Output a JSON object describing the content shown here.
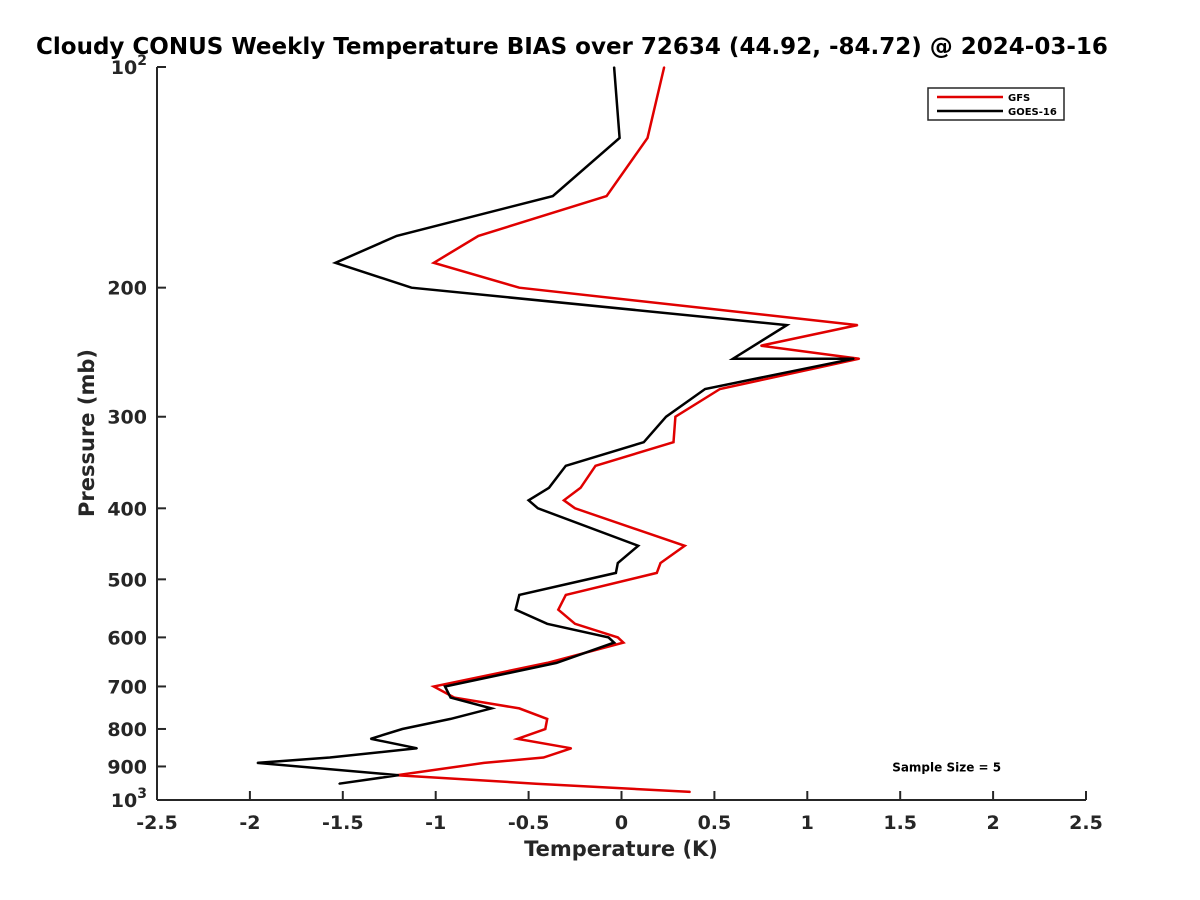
{
  "chart_data": {
    "type": "line",
    "title": "Cloudy CONUS Weekly Temperature BIAS over 72634 (44.92, -84.72) @ 2024-03-16",
    "xlabel": "Temperature (K)",
    "ylabel": "Pressure (mb)",
    "xlim": [
      -2.5,
      2.5
    ],
    "ylim": [
      100,
      1000
    ],
    "y_scale": "log",
    "y_reversed": true,
    "grid": false,
    "legend_position": "top-right",
    "x_ticks": [
      "-2.5",
      "-2",
      "-1.5",
      "-1",
      "-0.5",
      "0",
      "0.5",
      "1",
      "1.5",
      "2",
      "2.5"
    ],
    "y_ticks": [
      {
        "value": 100,
        "base": "10",
        "exp": "2"
      },
      {
        "value": 200,
        "label": "200"
      },
      {
        "value": 300,
        "label": "300"
      },
      {
        "value": 400,
        "label": "400"
      },
      {
        "value": 500,
        "label": "500"
      },
      {
        "value": 600,
        "label": "600"
      },
      {
        "value": 700,
        "label": "700"
      },
      {
        "value": 800,
        "label": "800"
      },
      {
        "value": 900,
        "label": "900"
      },
      {
        "value": 1000,
        "base": "10",
        "exp": "3"
      }
    ],
    "series": [
      {
        "name": "GFS",
        "color": "#e00000",
        "points": [
          {
            "x": 0.23,
            "y": 100
          },
          {
            "x": 0.14,
            "y": 125
          },
          {
            "x": -0.08,
            "y": 150
          },
          {
            "x": -0.77,
            "y": 170
          },
          {
            "x": -1.01,
            "y": 185
          },
          {
            "x": -0.55,
            "y": 200
          },
          {
            "x": 1.27,
            "y": 225
          },
          {
            "x": 0.75,
            "y": 240
          },
          {
            "x": 1.28,
            "y": 250
          },
          {
            "x": 0.53,
            "y": 275
          },
          {
            "x": 0.29,
            "y": 300
          },
          {
            "x": 0.28,
            "y": 325
          },
          {
            "x": -0.14,
            "y": 350
          },
          {
            "x": -0.22,
            "y": 375
          },
          {
            "x": -0.31,
            "y": 390
          },
          {
            "x": -0.25,
            "y": 400
          },
          {
            "x": 0.34,
            "y": 450
          },
          {
            "x": 0.21,
            "y": 475
          },
          {
            "x": 0.19,
            "y": 490
          },
          {
            "x": -0.3,
            "y": 525
          },
          {
            "x": -0.34,
            "y": 550
          },
          {
            "x": -0.25,
            "y": 575
          },
          {
            "x": -0.02,
            "y": 600
          },
          {
            "x": 0.01,
            "y": 610
          },
          {
            "x": -0.4,
            "y": 650
          },
          {
            "x": -1.01,
            "y": 700
          },
          {
            "x": -0.9,
            "y": 725
          },
          {
            "x": -0.55,
            "y": 750
          },
          {
            "x": -0.4,
            "y": 775
          },
          {
            "x": -0.41,
            "y": 800
          },
          {
            "x": -0.56,
            "y": 825
          },
          {
            "x": -0.27,
            "y": 850
          },
          {
            "x": -0.42,
            "y": 875
          },
          {
            "x": -0.74,
            "y": 890
          },
          {
            "x": -1.21,
            "y": 925
          },
          {
            "x": -0.46,
            "y": 950
          },
          {
            "x": 0.37,
            "y": 975
          }
        ]
      },
      {
        "name": "GOES-16",
        "color": "#000000",
        "points": [
          {
            "x": -0.04,
            "y": 100
          },
          {
            "x": -0.01,
            "y": 125
          },
          {
            "x": -0.37,
            "y": 150
          },
          {
            "x": -1.21,
            "y": 170
          },
          {
            "x": -1.54,
            "y": 185
          },
          {
            "x": -1.13,
            "y": 200
          },
          {
            "x": 0.89,
            "y": 225
          },
          {
            "x": 0.6,
            "y": 250
          },
          {
            "x": 1.25,
            "y": 250
          },
          {
            "x": 0.45,
            "y": 275
          },
          {
            "x": 0.24,
            "y": 300
          },
          {
            "x": 0.12,
            "y": 325
          },
          {
            "x": -0.3,
            "y": 350
          },
          {
            "x": -0.39,
            "y": 375
          },
          {
            "x": -0.5,
            "y": 390
          },
          {
            "x": -0.45,
            "y": 400
          },
          {
            "x": 0.09,
            "y": 450
          },
          {
            "x": -0.02,
            "y": 475
          },
          {
            "x": -0.03,
            "y": 490
          },
          {
            "x": -0.55,
            "y": 525
          },
          {
            "x": -0.57,
            "y": 550
          },
          {
            "x": -0.4,
            "y": 575
          },
          {
            "x": -0.07,
            "y": 600
          },
          {
            "x": -0.04,
            "y": 610
          },
          {
            "x": -0.35,
            "y": 650
          },
          {
            "x": -0.95,
            "y": 700
          },
          {
            "x": -0.92,
            "y": 725
          },
          {
            "x": -0.7,
            "y": 750
          },
          {
            "x": -0.92,
            "y": 775
          },
          {
            "x": -1.18,
            "y": 800
          },
          {
            "x": -1.35,
            "y": 825
          },
          {
            "x": -1.1,
            "y": 850
          },
          {
            "x": -1.57,
            "y": 875
          },
          {
            "x": -1.96,
            "y": 890
          },
          {
            "x": -1.2,
            "y": 925
          },
          {
            "x": -1.52,
            "y": 950
          }
        ]
      }
    ],
    "annotations": [
      {
        "text": "Sample Size = 5",
        "x": 1.75,
        "y": 900
      }
    ]
  }
}
